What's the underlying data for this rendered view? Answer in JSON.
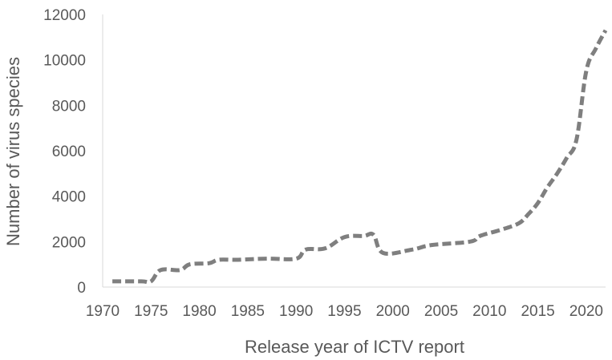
{
  "chart_data": {
    "type": "line",
    "xlabel": "Release year of ICTV report",
    "ylabel": "Number of virus species",
    "xlim": [
      1970,
      2022
    ],
    "ylim": [
      0,
      12000
    ],
    "xticks": [
      1970,
      1975,
      1980,
      1985,
      1990,
      1995,
      2000,
      2005,
      2010,
      2015,
      2020
    ],
    "yticks": [
      0,
      2000,
      4000,
      6000,
      8000,
      10000,
      12000
    ],
    "grid": false,
    "legend": "none",
    "line_style": "dashed",
    "line_color": "#7f7f7f",
    "series": [
      {
        "x": [
          1971,
          1974,
          1975,
          1976,
          1978,
          1979,
          1981,
          1982,
          1984,
          1987,
          1990,
          1991,
          1993,
          1995,
          1997,
          1998,
          1999,
          2002,
          2004,
          2008,
          2009,
          2011,
          2013,
          2014,
          2015,
          2016,
          2017,
          2018,
          2019,
          2020,
          2021,
          2022
        ],
        "values": [
          250,
          250,
          250,
          750,
          750,
          1000,
          1050,
          1200,
          1200,
          1250,
          1250,
          1650,
          1700,
          2200,
          2250,
          2300,
          1500,
          1650,
          1850,
          2000,
          2250,
          2500,
          2800,
          3200,
          3700,
          4400,
          5000,
          5700,
          6500,
          9500,
          10500,
          11300
        ]
      }
    ]
  }
}
